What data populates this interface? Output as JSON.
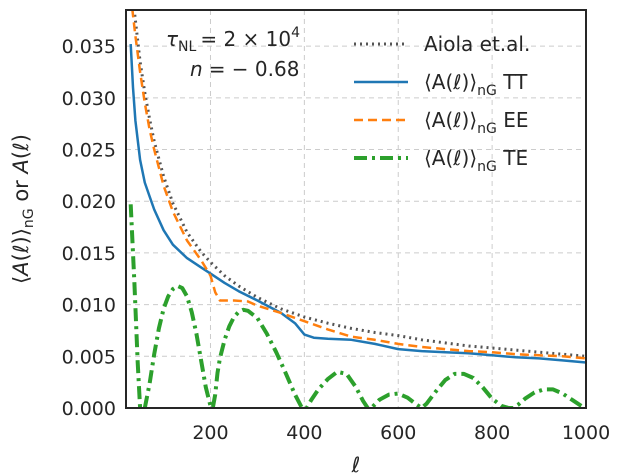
{
  "chart_data": {
    "type": "line",
    "xlabel": "ℓ",
    "ylabel": "⟨A(ℓ)⟩nG or A(ℓ)",
    "xlim": [
      20,
      1000
    ],
    "ylim": [
      0.0,
      0.0385
    ],
    "x_ticks": [
      200,
      400,
      600,
      800,
      1000
    ],
    "x_tick_labels": [
      "200",
      "400",
      "600",
      "800",
      "1000"
    ],
    "y_ticks": [
      0.0,
      0.005,
      0.01,
      0.015,
      0.02,
      0.025,
      0.03,
      0.035
    ],
    "y_tick_labels": [
      "0.000",
      "0.005",
      "0.010",
      "0.015",
      "0.020",
      "0.025",
      "0.030",
      "0.035"
    ],
    "grid": true,
    "legend_position": "top-right",
    "annotations": {
      "tau_label": "τ",
      "tau_sub": "NL",
      "tau_value": "= 2 × 10",
      "tau_exp": "4",
      "n_label": "n",
      "n_value": "= − 0.68"
    },
    "series": [
      {
        "name": "Aiola et.al.",
        "style": "dotted",
        "color": "#555555",
        "x": [
          30,
          40,
          50,
          60,
          70,
          80,
          100,
          120,
          150,
          180,
          200,
          230,
          260,
          300,
          350,
          400,
          450,
          500,
          550,
          600,
          650,
          700,
          750,
          800,
          850,
          900,
          950,
          1000
        ],
        "y": [
          0.0415,
          0.0375,
          0.0335,
          0.0305,
          0.028,
          0.0258,
          0.0224,
          0.0198,
          0.017,
          0.0151,
          0.0141,
          0.0128,
          0.0118,
          0.0107,
          0.0096,
          0.0088,
          0.0082,
          0.0077,
          0.0073,
          0.007,
          0.0066,
          0.0063,
          0.006,
          0.0058,
          0.0056,
          0.0054,
          0.0052,
          0.005
        ]
      },
      {
        "name": "⟨A(ℓ)⟩nG TT",
        "legend_main": "⟨A(ℓ)⟩",
        "legend_sub": "nG",
        "legend_suffix": " TT",
        "style": "solid",
        "color": "#1f77b4",
        "x": [
          30,
          35,
          40,
          50,
          60,
          70,
          80,
          100,
          120,
          150,
          180,
          200,
          230,
          260,
          300,
          350,
          380,
          400,
          420,
          450,
          500,
          550,
          600,
          650,
          700,
          750,
          800,
          850,
          900,
          950,
          1000
        ],
        "y": [
          0.0352,
          0.031,
          0.0278,
          0.024,
          0.0218,
          0.0205,
          0.0192,
          0.0172,
          0.0158,
          0.0145,
          0.0136,
          0.013,
          0.0121,
          0.0113,
          0.0104,
          0.0092,
          0.0082,
          0.0071,
          0.0068,
          0.0067,
          0.0066,
          0.0062,
          0.0057,
          0.0055,
          0.0054,
          0.0053,
          0.0051,
          0.0049,
          0.0048,
          0.0046,
          0.0044
        ]
      },
      {
        "name": "⟨A(ℓ)⟩nG EE",
        "legend_main": "⟨A(ℓ)⟩",
        "legend_sub": "nG",
        "legend_suffix": " EE",
        "style": "dashed",
        "color": "#ff7f0e",
        "x": [
          30,
          35,
          40,
          50,
          60,
          70,
          80,
          100,
          120,
          150,
          180,
          200,
          210,
          220,
          250,
          280,
          300,
          350,
          400,
          450,
          500,
          550,
          600,
          650,
          700,
          750,
          800,
          850,
          900,
          950,
          1000
        ],
        "y": [
          0.04,
          0.038,
          0.036,
          0.0325,
          0.0295,
          0.027,
          0.025,
          0.0215,
          0.019,
          0.0162,
          0.0143,
          0.0128,
          0.0112,
          0.0104,
          0.0104,
          0.0103,
          0.0099,
          0.0092,
          0.0084,
          0.0076,
          0.0069,
          0.0066,
          0.0062,
          0.0059,
          0.0057,
          0.0055,
          0.0054,
          0.0052,
          0.0051,
          0.005,
          0.0048
        ]
      },
      {
        "name": "⟨A(ℓ)⟩nG TE",
        "legend_main": "⟨A(ℓ)⟩",
        "legend_sub": "nG",
        "legend_suffix": " TE",
        "style": "dashdot",
        "color": "#2ca02c",
        "x": [
          30,
          38,
          45,
          50,
          55,
          60,
          70,
          80,
          90,
          100,
          110,
          120,
          130,
          140,
          150,
          160,
          170,
          180,
          190,
          200,
          205,
          210,
          215,
          220,
          230,
          240,
          250,
          260,
          270,
          280,
          300,
          320,
          340,
          360,
          380,
          395,
          405,
          415,
          430,
          450,
          470,
          490,
          510,
          525,
          535,
          545,
          560,
          580,
          600,
          620,
          640,
          650,
          660,
          680,
          700,
          720,
          740,
          760,
          780,
          800,
          820,
          835,
          845,
          855,
          870,
          890,
          910,
          930,
          950,
          970,
          990,
          1000
        ],
        "y": [
          0.0197,
          0.0121,
          0.0044,
          0.0,
          0.0,
          0.0,
          0.0023,
          0.0052,
          0.0077,
          0.0096,
          0.0108,
          0.0115,
          0.0118,
          0.0116,
          0.0108,
          0.0093,
          0.0072,
          0.0046,
          0.002,
          0.0002,
          0.0,
          0.0013,
          0.0034,
          0.0048,
          0.0066,
          0.0079,
          0.0088,
          0.0093,
          0.0095,
          0.0094,
          0.0087,
          0.0072,
          0.0054,
          0.0034,
          0.0013,
          0.0,
          0.0,
          0.0008,
          0.0018,
          0.0028,
          0.0035,
          0.0033,
          0.002,
          0.0007,
          0.0,
          0.0001,
          0.0008,
          0.0013,
          0.0014,
          0.001,
          0.0003,
          0.0,
          0.0004,
          0.0016,
          0.0027,
          0.0033,
          0.0033,
          0.0029,
          0.002,
          0.0009,
          0.0002,
          0.0,
          0.0,
          0.0003,
          0.0009,
          0.0015,
          0.0018,
          0.0018,
          0.0014,
          0.0008,
          0.0002,
          0.0
        ]
      }
    ]
  }
}
